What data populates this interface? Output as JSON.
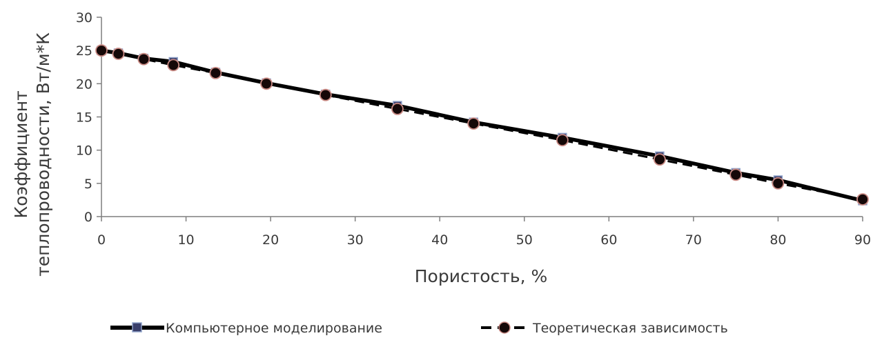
{
  "chart_data": {
    "type": "line",
    "title": "",
    "xlabel": "Пористость, %",
    "ylabel_lines": [
      "Коэффициент",
      "теплопроводности, Вт/м*К"
    ],
    "xlim": [
      0,
      90
    ],
    "ylim": [
      0,
      30
    ],
    "xticks": [
      0,
      10,
      20,
      30,
      40,
      50,
      60,
      70,
      80,
      90
    ],
    "yticks": [
      0,
      5,
      10,
      15,
      20,
      25,
      30
    ],
    "grid": false,
    "legend_position": "bottom",
    "series": [
      {
        "name": "Компьютерное моделирование",
        "style": "solid",
        "marker": "square",
        "color": "#000000",
        "marker_fill": "#3a3f6b",
        "marker_edge": "#8ea0c8",
        "x": [
          0,
          2,
          5,
          8.5,
          13.5,
          19.5,
          26.5,
          35,
          44,
          54.5,
          66,
          75,
          80,
          90
        ],
        "y": [
          25,
          24.6,
          23.8,
          23.3,
          21.7,
          20.1,
          18.4,
          16.7,
          14.2,
          11.9,
          9.1,
          6.6,
          5.5,
          2.4
        ]
      },
      {
        "name": "Теоретическая зависимость",
        "style": "dashed",
        "marker": "circle",
        "color": "#000000",
        "marker_fill": "#150808",
        "marker_edge": "#c98a84",
        "x": [
          0,
          2,
          5,
          8.5,
          13.5,
          19.5,
          26.5,
          35,
          44,
          54.5,
          66,
          75,
          80,
          90
        ],
        "y": [
          25,
          24.5,
          23.7,
          22.8,
          21.6,
          20.0,
          18.3,
          16.2,
          14.0,
          11.5,
          8.6,
          6.3,
          5.0,
          2.6
        ]
      }
    ]
  }
}
